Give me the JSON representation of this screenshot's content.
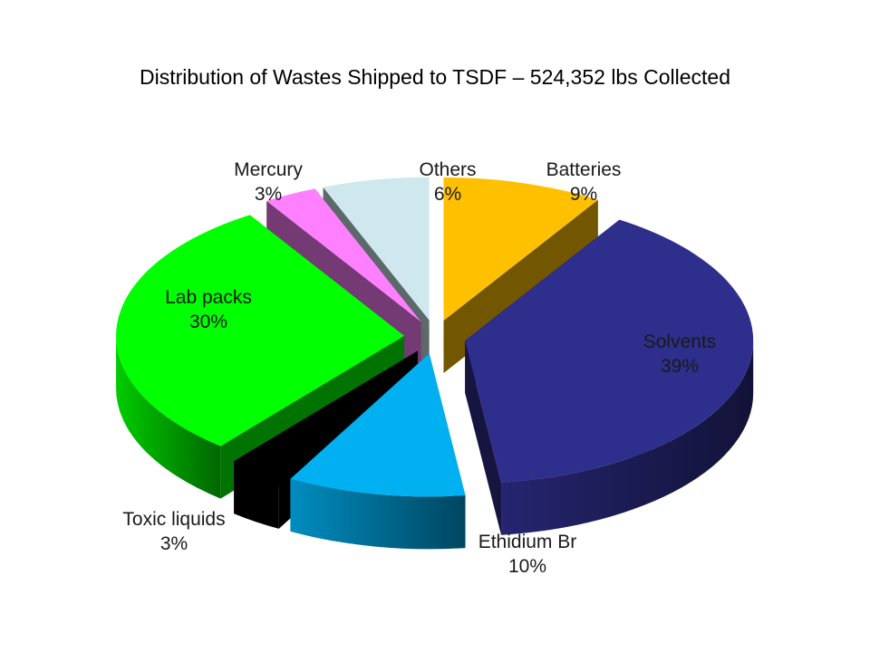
{
  "chart_data": {
    "type": "pie",
    "title": "Distribution of Wastes Shipped to TSDF – 524,352 lbs Collected",
    "exploded": true,
    "three_d": true,
    "slices": [
      {
        "label": "Batteries",
        "pct_label": "9%",
        "value": 9,
        "color": "#ffc000"
      },
      {
        "label": "Solvents",
        "pct_label": "39%",
        "value": 39,
        "color": "#2e2e8c"
      },
      {
        "label": "Ethidium Br",
        "pct_label": "10%",
        "value": 10,
        "color": "#00b0f0"
      },
      {
        "label": "Toxic liquids",
        "pct_label": "3%",
        "value": 3,
        "color": "#000000"
      },
      {
        "label": "Lab packs",
        "pct_label": "30%",
        "value": 30,
        "color": "#00ff00"
      },
      {
        "label": "Mercury",
        "pct_label": "3%",
        "value": 3,
        "color": "#ff80ff"
      },
      {
        "label": "Others",
        "pct_label": "6%",
        "value": 6,
        "color": "#cfe8ee"
      }
    ]
  }
}
